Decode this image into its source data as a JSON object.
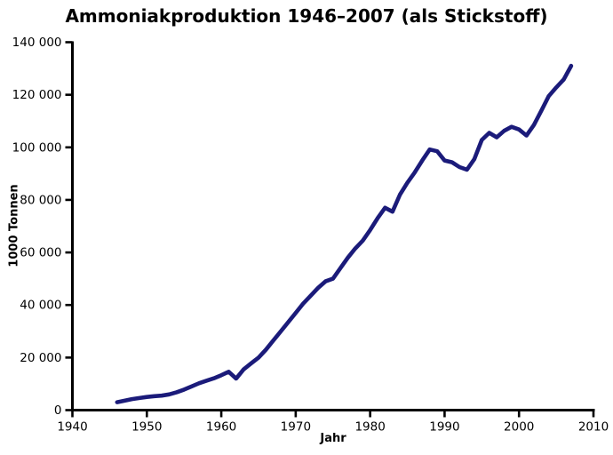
{
  "chart": {
    "title": "Ammoniakproduktion 1946–2007 (als Stickstoff)",
    "line_color": "#1b1b7a",
    "axis_color": "#000000",
    "background_color": "#ffffff"
  },
  "chart_data": {
    "type": "line",
    "title": "Ammoniakproduktion 1946–2007 (als Stickstoff)",
    "xlabel": "Jahr",
    "ylabel": "1000 Tonnen",
    "xlim": [
      1940,
      2010
    ],
    "ylim": [
      0,
      140000
    ],
    "grid": false,
    "legend": "none",
    "x_ticks": [
      1940,
      1950,
      1960,
      1970,
      1980,
      1990,
      2000,
      2010
    ],
    "x_tick_labels": [
      "1940",
      "1950",
      "1960",
      "1970",
      "1980",
      "1990",
      "2000",
      "2010"
    ],
    "y_ticks": [
      0,
      20000,
      40000,
      60000,
      80000,
      100000,
      120000,
      140000
    ],
    "y_tick_labels": [
      "0",
      "20 000",
      "40 000",
      "60 000",
      "80 000",
      "100 000",
      "120 000",
      "140 000"
    ],
    "series": [
      {
        "name": "Ammoniakproduktion (als Stickstoff)",
        "x": [
          1946,
          1947,
          1948,
          1949,
          1950,
          1951,
          1952,
          1953,
          1954,
          1955,
          1956,
          1957,
          1958,
          1959,
          1960,
          1961,
          1962,
          1963,
          1964,
          1965,
          1966,
          1967,
          1968,
          1969,
          1970,
          1971,
          1972,
          1973,
          1974,
          1975,
          1976,
          1977,
          1978,
          1979,
          1980,
          1981,
          1982,
          1983,
          1984,
          1985,
          1986,
          1987,
          1988,
          1989,
          1990,
          1991,
          1992,
          1993,
          1994,
          1995,
          1996,
          1997,
          1998,
          1999,
          2000,
          2001,
          2002,
          2003,
          2004,
          2005,
          2006,
          2007
        ],
        "y": [
          3000,
          3600,
          4200,
          4600,
          5000,
          5300,
          5500,
          6000,
          6800,
          7800,
          9000,
          10200,
          11200,
          12100,
          13300,
          14600,
          12000,
          15500,
          17800,
          20000,
          23000,
          26500,
          30000,
          33500,
          37000,
          40500,
          43500,
          46500,
          49000,
          50000,
          54000,
          58000,
          61500,
          64500,
          68500,
          73000,
          77000,
          75500,
          82000,
          86500,
          90500,
          95000,
          99200,
          98500,
          95000,
          94300,
          92500,
          91500,
          95500,
          102800,
          105500,
          103800,
          106300,
          107800,
          106800,
          104500,
          108500,
          114000,
          119500,
          122800,
          125800,
          131000
        ]
      }
    ]
  }
}
